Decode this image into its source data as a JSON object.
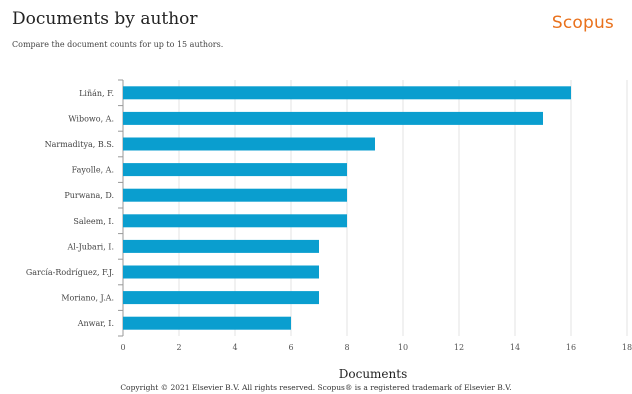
{
  "page": {
    "title": "Documents by author",
    "subtitle": "Compare the document counts for up to 15 authors.",
    "brand": "Scopus",
    "footer": "Copyright © 2021 Elsevier B.V. All rights reserved. Scopus® is a registered trademark of Elsevier B.V."
  },
  "colors": {
    "bar": "#0a9ecf",
    "brand": "#e9711c",
    "grid": "#e3e3e3",
    "axis": "#999999"
  },
  "chart_data": {
    "type": "bar",
    "orientation": "horizontal",
    "categories": [
      "Liñán, F.",
      "Wibowo, A.",
      "Narmaditya, B.S.",
      "Fayolle, A.",
      "Purwana, D.",
      "Saleem, I.",
      "Al-Jubari, I.",
      "García-Rodríguez, F.J.",
      "Moriano, J.A.",
      "Anwar, I."
    ],
    "values": [
      16,
      15,
      9,
      8,
      8,
      8,
      7,
      7,
      7,
      6
    ],
    "xlabel": "Documents",
    "ylabel": "",
    "xlim": [
      0,
      18
    ],
    "xticks": [
      0,
      2,
      4,
      6,
      8,
      10,
      12,
      14,
      16,
      18
    ],
    "grid": true
  }
}
